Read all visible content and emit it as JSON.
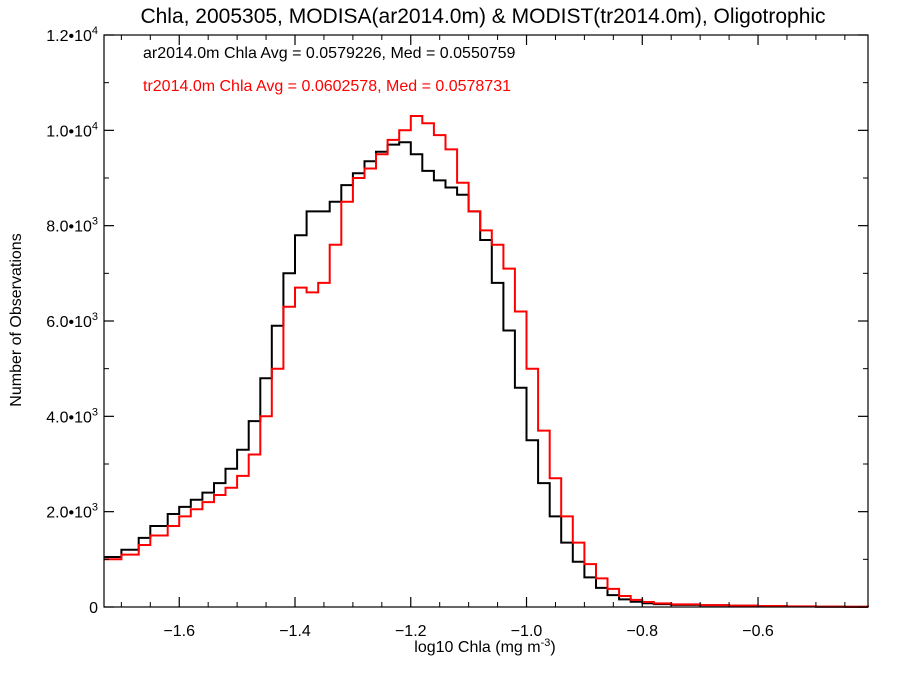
{
  "chart_data": {
    "type": "line",
    "title": "Chla, 2005305, MODISA(ar2014.0m) & MODIST(tr2014.0m), Oligotrophic",
    "xlabel": "log10 Chla (mg m",
    "xlabel_sup": "-3",
    "xlabel_close": ")",
    "ylabel": "Number of Observations",
    "xlim": [
      -1.73,
      -0.41
    ],
    "ylim": [
      0,
      12000
    ],
    "step": true,
    "grid": false,
    "x_ticks": [
      {
        "v": -1.6,
        "label": "−1.6"
      },
      {
        "v": -1.4,
        "label": "−1.4"
      },
      {
        "v": -1.2,
        "label": "−1.2"
      },
      {
        "v": -1.0,
        "label": "−1.0"
      },
      {
        "v": -0.8,
        "label": "−0.8"
      },
      {
        "v": -0.6,
        "label": "−0.6"
      }
    ],
    "y_ticks": [
      {
        "v": 0,
        "m": "0",
        "e": ""
      },
      {
        "v": 2000,
        "m": "2.0•10",
        "e": "3"
      },
      {
        "v": 4000,
        "m": "4.0•10",
        "e": "3"
      },
      {
        "v": 6000,
        "m": "6.0•10",
        "e": "3"
      },
      {
        "v": 8000,
        "m": "8.0•10",
        "e": "3"
      },
      {
        "v": 10000,
        "m": "1.0•10",
        "e": "4"
      },
      {
        "v": 12000,
        "m": "1.2•10",
        "e": "4"
      }
    ],
    "annotations": [
      {
        "text": "ar2014.0m Chla Avg = 0.0579226, Med = 0.0550759",
        "color": "#000000"
      },
      {
        "text": "tr2014.0m Chla Avg = 0.0602578, Med = 0.0578731",
        "color": "#ff0000"
      }
    ],
    "series": [
      {
        "color": "#000000",
        "x": [
          -1.73,
          -1.7,
          -1.67,
          -1.65,
          -1.62,
          -1.6,
          -1.58,
          -1.56,
          -1.54,
          -1.52,
          -1.5,
          -1.48,
          -1.46,
          -1.44,
          -1.42,
          -1.4,
          -1.38,
          -1.36,
          -1.34,
          -1.32,
          -1.3,
          -1.28,
          -1.26,
          -1.24,
          -1.22,
          -1.2,
          -1.18,
          -1.16,
          -1.14,
          -1.12,
          -1.1,
          -1.08,
          -1.06,
          -1.04,
          -1.02,
          -1.0,
          -0.98,
          -0.96,
          -0.94,
          -0.92,
          -0.9,
          -0.88,
          -0.86,
          -0.84,
          -0.82,
          -0.8,
          -0.78,
          -0.75,
          -0.7,
          -0.65,
          -0.6,
          -0.55,
          -0.5,
          -0.45,
          -0.41
        ],
        "values": [
          1050,
          1200,
          1450,
          1700,
          1950,
          2100,
          2250,
          2400,
          2600,
          2900,
          3300,
          3900,
          4800,
          5900,
          7000,
          7800,
          8300,
          8300,
          8500,
          8850,
          9100,
          9350,
          9550,
          9700,
          9750,
          9500,
          9150,
          8950,
          8800,
          8650,
          8300,
          7700,
          6800,
          5800,
          4600,
          3500,
          2600,
          1900,
          1350,
          950,
          620,
          400,
          250,
          160,
          110,
          80,
          60,
          45,
          35,
          25,
          18,
          10,
          6,
          3,
          0
        ]
      },
      {
        "color": "#ff0000",
        "x": [
          -1.73,
          -1.7,
          -1.67,
          -1.65,
          -1.62,
          -1.6,
          -1.58,
          -1.56,
          -1.54,
          -1.52,
          -1.5,
          -1.48,
          -1.46,
          -1.44,
          -1.42,
          -1.4,
          -1.38,
          -1.36,
          -1.34,
          -1.32,
          -1.3,
          -1.28,
          -1.26,
          -1.24,
          -1.22,
          -1.2,
          -1.18,
          -1.16,
          -1.14,
          -1.12,
          -1.1,
          -1.08,
          -1.06,
          -1.04,
          -1.02,
          -1.0,
          -0.98,
          -0.96,
          -0.94,
          -0.92,
          -0.9,
          -0.88,
          -0.86,
          -0.84,
          -0.82,
          -0.8,
          -0.78,
          -0.75,
          -0.7,
          -0.65,
          -0.6,
          -0.55,
          -0.5,
          -0.45,
          -0.41
        ],
        "values": [
          1000,
          1100,
          1300,
          1500,
          1700,
          1900,
          2050,
          2200,
          2350,
          2500,
          2750,
          3200,
          4000,
          5000,
          6300,
          6700,
          6600,
          6800,
          7600,
          8500,
          9000,
          9200,
          9500,
          9800,
          10000,
          10300,
          10150,
          9900,
          9600,
          8900,
          8300,
          7900,
          7600,
          7100,
          6200,
          5000,
          3700,
          2700,
          1900,
          1350,
          900,
          600,
          380,
          230,
          150,
          105,
          75,
          55,
          40,
          30,
          20,
          12,
          8,
          4,
          0
        ]
      }
    ]
  }
}
